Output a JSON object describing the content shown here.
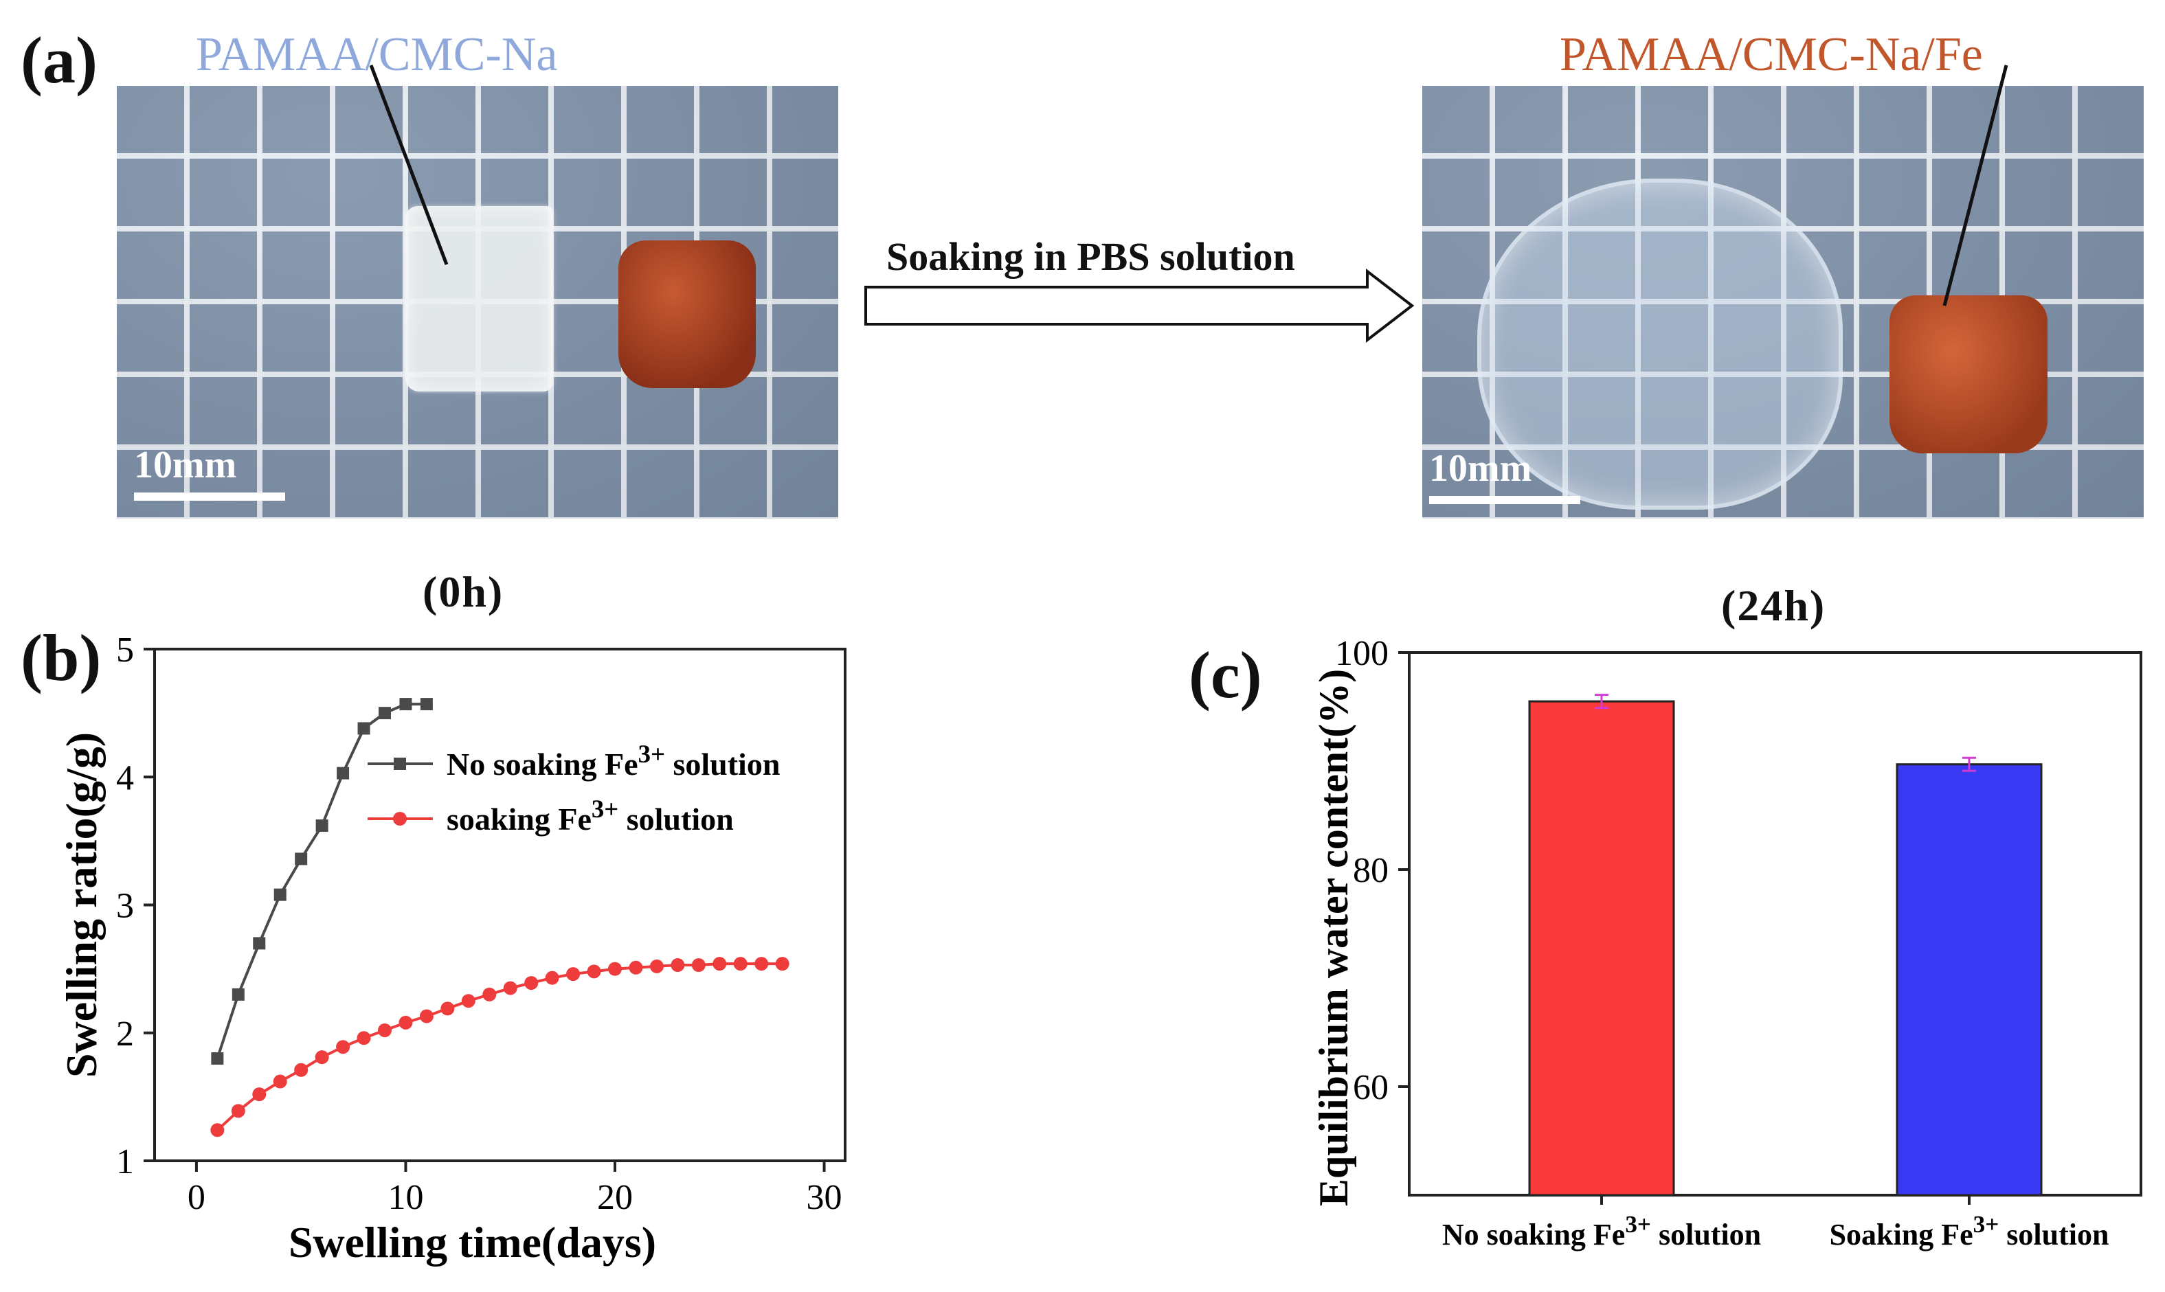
{
  "panel_a": {
    "letter": "(a)",
    "left_label": "PAMAA/CMC-Na",
    "right_label": "PAMAA/CMC-Na/Fe",
    "scale_text": "10mm",
    "arrow_text": "Soaking in PBS solution",
    "left_time": "(0h)",
    "right_time": "(24h)",
    "colors": {
      "left_label": "#8fa8dc",
      "right_label": "#c0562a",
      "gel_fe": "#a84320"
    }
  },
  "panel_b_letter": "(b)",
  "panel_c_letter": "(c)",
  "chart_data": [
    {
      "type": "line",
      "xlabel": "Swelling time(days)",
      "ylabel": "Swelling ratio(g/g)",
      "xlim": [
        -2,
        31
      ],
      "ylim": [
        1,
        5
      ],
      "xticks": [
        0,
        10,
        20,
        30
      ],
      "yticks": [
        1,
        2,
        3,
        4,
        5
      ],
      "legend_position": "top-right",
      "series": [
        {
          "name": "No soaking Fe",
          "name_sup": "3+",
          "name_suffix": " solution",
          "marker": "square",
          "color": "#4a4a4a",
          "x": [
            1,
            2,
            3,
            4,
            5,
            6,
            7,
            8,
            9,
            10,
            11
          ],
          "y": [
            1.8,
            2.3,
            2.7,
            3.08,
            3.36,
            3.62,
            4.03,
            4.38,
            4.5,
            4.57,
            4.57
          ]
        },
        {
          "name": "soaking Fe",
          "name_sup": "3+",
          "name_suffix": " solution",
          "marker": "circle",
          "color": "#ee3b3b",
          "x": [
            1,
            2,
            3,
            4,
            5,
            6,
            7,
            8,
            9,
            10,
            11,
            12,
            13,
            14,
            15,
            16,
            17,
            18,
            19,
            20,
            21,
            22,
            23,
            24,
            25,
            26,
            27,
            28
          ],
          "y": [
            1.24,
            1.39,
            1.52,
            1.62,
            1.71,
            1.81,
            1.89,
            1.96,
            2.02,
            2.08,
            2.13,
            2.19,
            2.25,
            2.3,
            2.35,
            2.39,
            2.43,
            2.46,
            2.48,
            2.5,
            2.51,
            2.52,
            2.53,
            2.53,
            2.54,
            2.54,
            2.54,
            2.54
          ]
        }
      ]
    },
    {
      "type": "bar",
      "ylabel": "Equilibrium water content(%)",
      "ylim": [
        50,
        100
      ],
      "yticks": [
        60,
        80,
        100
      ],
      "categories": [
        {
          "pre": "No soaking Fe",
          "sup": "3+",
          "post": " solution"
        },
        {
          "pre": "Soaking Fe",
          "sup": "3+",
          "post": " solution"
        }
      ],
      "values": [
        95.5,
        89.7
      ],
      "errors": [
        0.6,
        0.6
      ],
      "colors": [
        "#fa3a3a",
        "#3a3af5"
      ],
      "error_color": "#d23cd2"
    }
  ]
}
